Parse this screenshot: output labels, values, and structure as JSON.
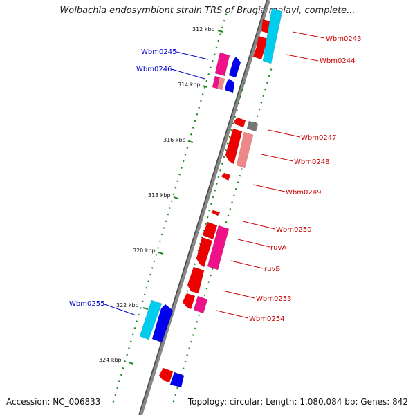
{
  "title": "Wolbachia endosymbiont strain TRS of Brugia malayi, complete...",
  "footer": {
    "accession": "Accession: NC_006833",
    "summary": "Topology: circular; Length: 1,080,084 bp; Genes: 842"
  },
  "scale_labels": [
    "312 kbp",
    "314 kbp",
    "316 kbp",
    "318 kbp",
    "320 kbp",
    "322 kbp",
    "324 kbp"
  ],
  "gene_labels": {
    "wbm0243": "Wbm0243",
    "wbm0244": "Wbm0244",
    "wbm0245": "Wbm0245",
    "wbm0246": "Wbm0246",
    "wbm0247": "Wbm0247",
    "wbm0248": "Wbm0248",
    "wbm0249": "Wbm0249",
    "wbm0250": "Wbm0250",
    "ruva": "ruvA",
    "ruvb": "ruvB",
    "wbm0253": "Wbm0253",
    "wbm0254": "Wbm0254",
    "wbm0255": "Wbm0255"
  },
  "colors": {
    "backbone": "#888888",
    "tick": "#228822",
    "forward_gene": "#ee0000",
    "reverse_gene": "#0000ee",
    "forward_rna": "#ee1188",
    "reverse_rna": "#00ccee",
    "pseudo": "#ee8888",
    "gray_gene": "#777777"
  }
}
